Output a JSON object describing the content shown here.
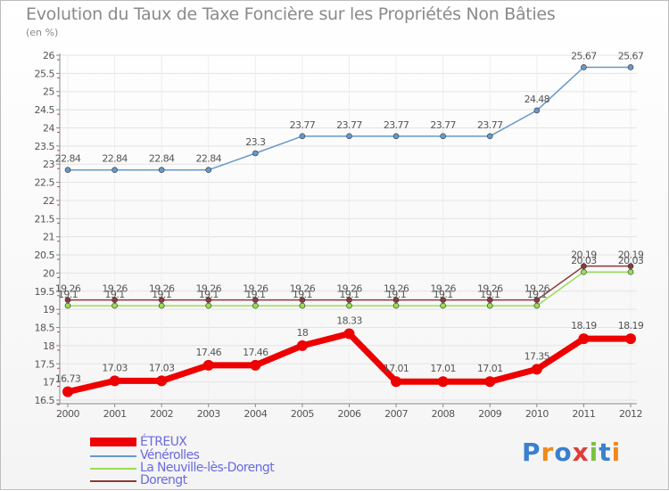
{
  "chart_data": {
    "type": "line",
    "title": "Evolution du Taux de Taxe Foncière sur les Propriétés Non Bâties",
    "ylabel": "(en %)",
    "xlabel": "",
    "ylim": [
      16.5,
      26
    ],
    "yticks": [
      16.5,
      17,
      17.5,
      18,
      18.5,
      19,
      19.5,
      20,
      20.5,
      21,
      21.5,
      22,
      22.5,
      23,
      23.5,
      24,
      24.5,
      25,
      25.5,
      26
    ],
    "categories": [
      "2000",
      "2001",
      "2002",
      "2003",
      "2004",
      "2005",
      "2006",
      "2007",
      "2008",
      "2009",
      "2010",
      "2011",
      "2012"
    ],
    "series": [
      {
        "name": "ÉTREUX",
        "color": "#ee0000",
        "values": [
          16.73,
          17.03,
          17.03,
          17.46,
          17.46,
          18,
          18.33,
          17.01,
          17.01,
          17.01,
          17.35,
          18.19,
          18.19
        ]
      },
      {
        "name": "Vénérolles",
        "color": "#6699cc",
        "values": [
          22.84,
          22.84,
          22.84,
          22.84,
          23.3,
          23.77,
          23.77,
          23.77,
          23.77,
          23.77,
          24.48,
          25.67,
          25.67
        ]
      },
      {
        "name": "La Neuville-lès-Dorengt",
        "color": "#99dd55",
        "values": [
          19.1,
          19.1,
          19.1,
          19.1,
          19.1,
          19.1,
          19.1,
          19.1,
          19.1,
          19.1,
          19.1,
          20.03,
          20.03
        ]
      },
      {
        "name": "Dorengt",
        "color": "#8b3a3a",
        "values": [
          19.26,
          19.26,
          19.26,
          19.26,
          19.26,
          19.26,
          19.26,
          19.26,
          19.26,
          19.26,
          19.26,
          20.19,
          20.19
        ]
      }
    ]
  },
  "legend": {
    "items": [
      {
        "label": "ÉTREUX"
      },
      {
        "label": "Vénérolles"
      },
      {
        "label": "La Neuville-lès-Dorengt"
      },
      {
        "label": "Dorengt"
      }
    ]
  },
  "logo": {
    "text": "Proxiti"
  }
}
